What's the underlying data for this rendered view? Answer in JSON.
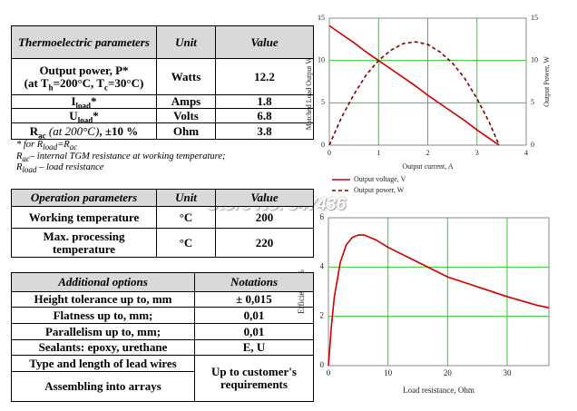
{
  "tables": [
    {
      "header": [
        "Thermoelectric parameters",
        "Unit",
        "Value"
      ],
      "rows": [
        [
          [
            [
              {
                "text": "Output power, P*"
              }
            ],
            [
              {
                "text": "(at T"
              },
              {
                "sub": "h"
              },
              {
                "text": "=200°C, T"
              },
              {
                "sub": "c"
              },
              {
                "text": "=30°C)"
              }
            ]
          ],
          "Watts",
          "12.2"
        ],
        [
          [
            [
              {
                "text": "I"
              },
              {
                "sub": "load"
              },
              {
                "text": "*"
              }
            ]
          ],
          "Amps",
          "1.8"
        ],
        [
          [
            [
              {
                "text": "U"
              },
              {
                "sub": "load"
              },
              {
                "text": "*"
              }
            ]
          ],
          "Volts",
          "6.8"
        ],
        [
          [
            [
              {
                "text": "R"
              },
              {
                "sub": "ac"
              },
              {
                "italic": " (at 200°C)"
              },
              {
                "text": ", ±10 %"
              }
            ]
          ],
          "Ohm",
          "3.8"
        ]
      ],
      "notes": [
        [
          {
            "text": "* for R"
          },
          {
            "sub": "load"
          },
          {
            "text": "=R"
          },
          {
            "sub": "ac"
          }
        ],
        [
          {
            "text": "R"
          },
          {
            "sub": "ac"
          },
          {
            "text": "– internal TGM resistance at working temperature;"
          }
        ],
        [
          {
            "text": "R"
          },
          {
            "sub": "load"
          },
          {
            "text": " – load resistance"
          }
        ]
      ]
    },
    {
      "header": [
        "Operation parameters",
        "Unit",
        "Value"
      ],
      "rows": [
        [
          "Working temperature",
          "°C",
          "200"
        ],
        [
          "Max. processing temperature",
          "°C",
          "220"
        ]
      ]
    },
    {
      "header": [
        "Additional options",
        "Notations"
      ],
      "rows": [
        [
          "Height tolerance up to, mm",
          "± 0,015"
        ],
        [
          "Flatness up to, mm;",
          "0,01"
        ],
        [
          "Parallelism up to, mm;",
          "0,01"
        ],
        [
          "Sealants: epoxy, urethane",
          "E, U"
        ],
        [
          "Type and length of lead wires",
          "Up to customer's requirements"
        ],
        [
          "Assembling into arrays"
        ]
      ]
    }
  ],
  "watermark": "Store No. 347436",
  "chart_data": [
    {
      "type": "line",
      "x_label": "Output current, A",
      "y_label": "Matched Load Output Voltage, V",
      "y2_label": "Output Power, W",
      "x": [
        0,
        0.25,
        0.5,
        0.75,
        1,
        1.25,
        1.5,
        1.75,
        2,
        2.25,
        2.5,
        2.75,
        3,
        3.25,
        3.45
      ],
      "series": [
        {
          "name": "Output voltage, V",
          "color": "#cc0000",
          "style": "solid",
          "values": [
            14.1,
            13.1,
            12.1,
            11.0,
            10.0,
            9.0,
            8.0,
            7.0,
            5.9,
            4.9,
            3.9,
            2.9,
            1.8,
            0.8,
            0
          ]
        },
        {
          "name": "Output power, W",
          "color": "#800000",
          "style": "dashed",
          "axis": "y2",
          "values": [
            0,
            3.3,
            6.0,
            8.3,
            10.0,
            11.2,
            12.0,
            12.2,
            11.9,
            11.0,
            9.7,
            7.9,
            5.5,
            2.7,
            0
          ]
        }
      ],
      "xlim": [
        0,
        4
      ],
      "xticks": [
        0,
        1,
        2,
        3,
        4
      ],
      "ylim": [
        0,
        15
      ],
      "yticks": [
        0,
        5,
        10,
        15
      ],
      "y2lim": [
        0,
        15
      ],
      "y2ticks": [
        0,
        5,
        10,
        15
      ],
      "grid": true,
      "grid_color": "#33cc33",
      "legend": "below"
    },
    {
      "type": "line",
      "x_label": "Load resistance, Ohm",
      "y_label": "Efficiency, %",
      "x": [
        0,
        0.5,
        1,
        2,
        3,
        4,
        5,
        6,
        8,
        10,
        15,
        20,
        25,
        30,
        35,
        37
      ],
      "series": [
        {
          "color": "#cc0000",
          "style": "solid",
          "values": [
            0,
            1.6,
            2.8,
            4.2,
            4.9,
            5.2,
            5.3,
            5.3,
            5.1,
            4.8,
            4.2,
            3.6,
            3.2,
            2.8,
            2.45,
            2.35
          ]
        }
      ],
      "xlim": [
        0,
        37
      ],
      "xticks": [
        0,
        10,
        20,
        30
      ],
      "ylim": [
        0,
        6
      ],
      "yticks": [
        0,
        2,
        4,
        6
      ],
      "grid": true,
      "grid_color": "#33cc33"
    }
  ]
}
